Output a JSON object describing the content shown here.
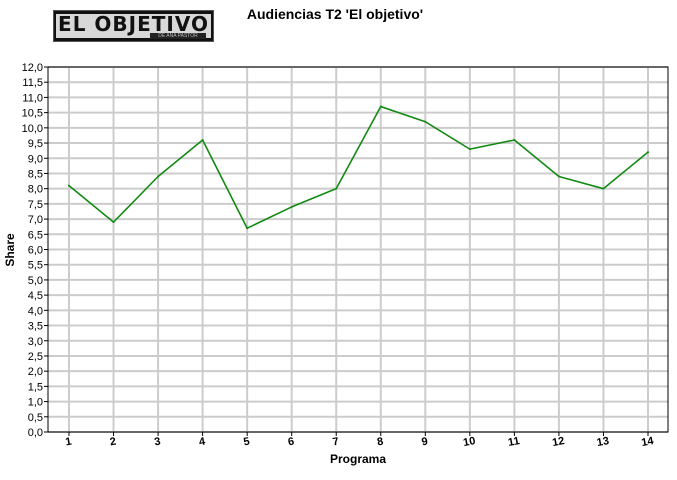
{
  "logo": {
    "text": "EL OBJETIVO",
    "tagline": "DE ANA PASTOR"
  },
  "colors": {
    "line": "#138a13",
    "grid": "#cccccc",
    "axis": "#000000"
  },
  "chart_data": {
    "type": "line",
    "title": "Audiencias T2 'El objetivo'",
    "xlabel": "Programa",
    "ylabel": "Share",
    "categories": [
      "1",
      "2",
      "3",
      "4",
      "5",
      "6",
      "7",
      "8",
      "9",
      "10",
      "11",
      "12",
      "13",
      "14"
    ],
    "values": [
      8.1,
      6.9,
      8.4,
      9.6,
      6.7,
      7.4,
      8.0,
      10.7,
      10.2,
      9.3,
      9.6,
      8.4,
      8.0,
      9.2
    ],
    "ylim": [
      0,
      12
    ],
    "ystep": 0.5,
    "y_tick_labels": [
      "0,0",
      "0,5",
      "1,0",
      "1,5",
      "2,0",
      "2,5",
      "3,0",
      "3,5",
      "4,0",
      "4,5",
      "5,0",
      "5,5",
      "6,0",
      "6,5",
      "7,0",
      "7,5",
      "8,0",
      "8,5",
      "9,0",
      "9,5",
      "10,0",
      "10,5",
      "11,0",
      "11,5",
      "12,0"
    ],
    "grid": true,
    "legend": "none"
  }
}
